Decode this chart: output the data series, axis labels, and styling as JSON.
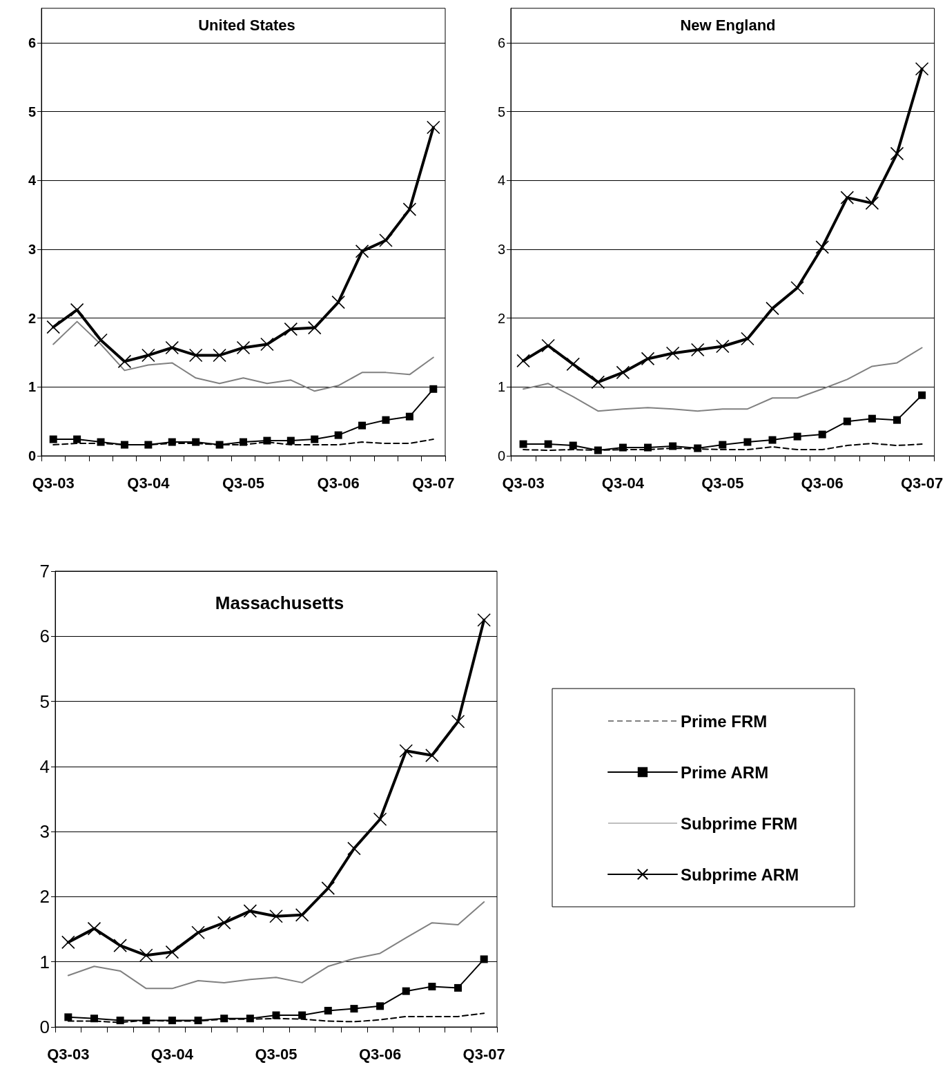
{
  "chart_data": [
    {
      "type": "line",
      "title": "United States",
      "categories": [
        "Q3-03",
        null,
        null,
        null,
        "Q3-04",
        null,
        null,
        null,
        "Q3-05",
        null,
        null,
        null,
        "Q3-06",
        null,
        null,
        null,
        "Q3-07"
      ],
      "ylim": [
        0,
        6.5
      ],
      "yticks": [
        0,
        1,
        2,
        3,
        4,
        5,
        6
      ],
      "grid": "y",
      "series": [
        {
          "color": "#000000",
          "line_style": "dashed",
          "marker": "none",
          "values": [
            0.16,
            0.18,
            0.18,
            0.16,
            0.16,
            0.18,
            0.18,
            0.16,
            0.16,
            0.2,
            0.16,
            0.16,
            0.16,
            0.2,
            0.18,
            0.18,
            0.24
          ]
        },
        {
          "color": "#000000",
          "line_style": "solid",
          "marker": "square",
          "values": [
            0.24,
            0.24,
            0.2,
            0.16,
            0.16,
            0.2,
            0.2,
            0.16,
            0.2,
            0.22,
            0.22,
            0.24,
            0.3,
            0.44,
            0.52,
            0.57,
            0.97
          ]
        },
        {
          "color": "#808080",
          "line_style": "solid",
          "marker": "none",
          "values": [
            1.62,
            1.95,
            1.62,
            1.24,
            1.32,
            1.35,
            1.13,
            1.05,
            1.13,
            1.05,
            1.1,
            0.94,
            1.02,
            1.21,
            1.21,
            1.18,
            1.43
          ]
        },
        {
          "color": "#000000",
          "line_style": "solid",
          "marker": "cross",
          "values": [
            1.87,
            2.12,
            1.68,
            1.37,
            1.46,
            1.57,
            1.46,
            1.46,
            1.57,
            1.62,
            1.84,
            1.86,
            2.23,
            2.97,
            3.13,
            3.58,
            4.77
          ]
        }
      ]
    },
    {
      "type": "line",
      "title": "New England",
      "categories": [
        "Q3-03",
        null,
        null,
        null,
        "Q3-04",
        null,
        null,
        null,
        "Q3-05",
        null,
        null,
        null,
        "Q3-06",
        null,
        null,
        null,
        "Q3-07"
      ],
      "ylim": [
        0,
        6.5
      ],
      "yticks": [
        0,
        1,
        2,
        3,
        4,
        5,
        6
      ],
      "grid": "y",
      "series": [
        {
          "color": "#000000",
          "line_style": "dashed",
          "marker": "none",
          "values": [
            0.09,
            0.08,
            0.09,
            0.08,
            0.09,
            0.09,
            0.11,
            0.1,
            0.09,
            0.09,
            0.13,
            0.09,
            0.09,
            0.15,
            0.18,
            0.15,
            0.17
          ]
        },
        {
          "color": "#000000",
          "line_style": "solid",
          "marker": "square",
          "values": [
            0.17,
            0.17,
            0.15,
            0.08,
            0.12,
            0.12,
            0.14,
            0.11,
            0.16,
            0.2,
            0.23,
            0.28,
            0.31,
            0.5,
            0.54,
            0.52,
            0.88
          ]
        },
        {
          "color": "#808080",
          "line_style": "solid",
          "marker": "none",
          "values": [
            0.97,
            1.05,
            0.86,
            0.65,
            0.68,
            0.7,
            0.68,
            0.65,
            0.68,
            0.68,
            0.84,
            0.84,
            0.97,
            1.11,
            1.3,
            1.35,
            1.57
          ]
        },
        {
          "color": "#000000",
          "line_style": "solid",
          "marker": "cross",
          "values": [
            1.38,
            1.6,
            1.33,
            1.07,
            1.21,
            1.41,
            1.49,
            1.54,
            1.59,
            1.7,
            2.14,
            2.44,
            3.03,
            3.75,
            3.67,
            4.39,
            5.62
          ]
        }
      ]
    },
    {
      "type": "line",
      "title": "Massachusetts",
      "categories": [
        "Q3-03",
        null,
        null,
        null,
        "Q3-04",
        null,
        null,
        null,
        "Q3-05",
        null,
        null,
        null,
        "Q3-06",
        null,
        null,
        null,
        "Q3-07"
      ],
      "ylim": [
        0,
        7
      ],
      "yticks": [
        0,
        1,
        2,
        3,
        4,
        5,
        6,
        7
      ],
      "grid": "y",
      "legend": "right",
      "series": [
        {
          "name": "Prime FRM",
          "color": "#000000",
          "line_style": "dashed",
          "marker": "none",
          "values": [
            0.09,
            0.09,
            0.07,
            0.1,
            0.09,
            0.09,
            0.12,
            0.12,
            0.13,
            0.12,
            0.09,
            0.08,
            0.11,
            0.16,
            0.16,
            0.16,
            0.21
          ]
        },
        {
          "name": "Prime ARM",
          "color": "#000000",
          "line_style": "solid",
          "marker": "square",
          "values": [
            0.15,
            0.13,
            0.1,
            0.1,
            0.1,
            0.1,
            0.13,
            0.13,
            0.18,
            0.18,
            0.25,
            0.28,
            0.32,
            0.55,
            0.62,
            0.6,
            1.04
          ]
        },
        {
          "name": "Subprime FRM",
          "color": "#808080",
          "line_style": "solid",
          "marker": "none",
          "values": [
            0.79,
            0.93,
            0.86,
            0.59,
            0.59,
            0.71,
            0.68,
            0.73,
            0.76,
            0.68,
            0.93,
            1.05,
            1.13,
            1.37,
            1.6,
            1.57,
            1.92
          ]
        },
        {
          "name": "Subprime ARM",
          "color": "#000000",
          "line_style": "solid",
          "marker": "cross",
          "values": [
            1.3,
            1.51,
            1.25,
            1.1,
            1.15,
            1.45,
            1.6,
            1.78,
            1.7,
            1.72,
            2.13,
            2.74,
            3.19,
            4.24,
            4.17,
            4.69,
            6.25
          ]
        }
      ]
    }
  ]
}
